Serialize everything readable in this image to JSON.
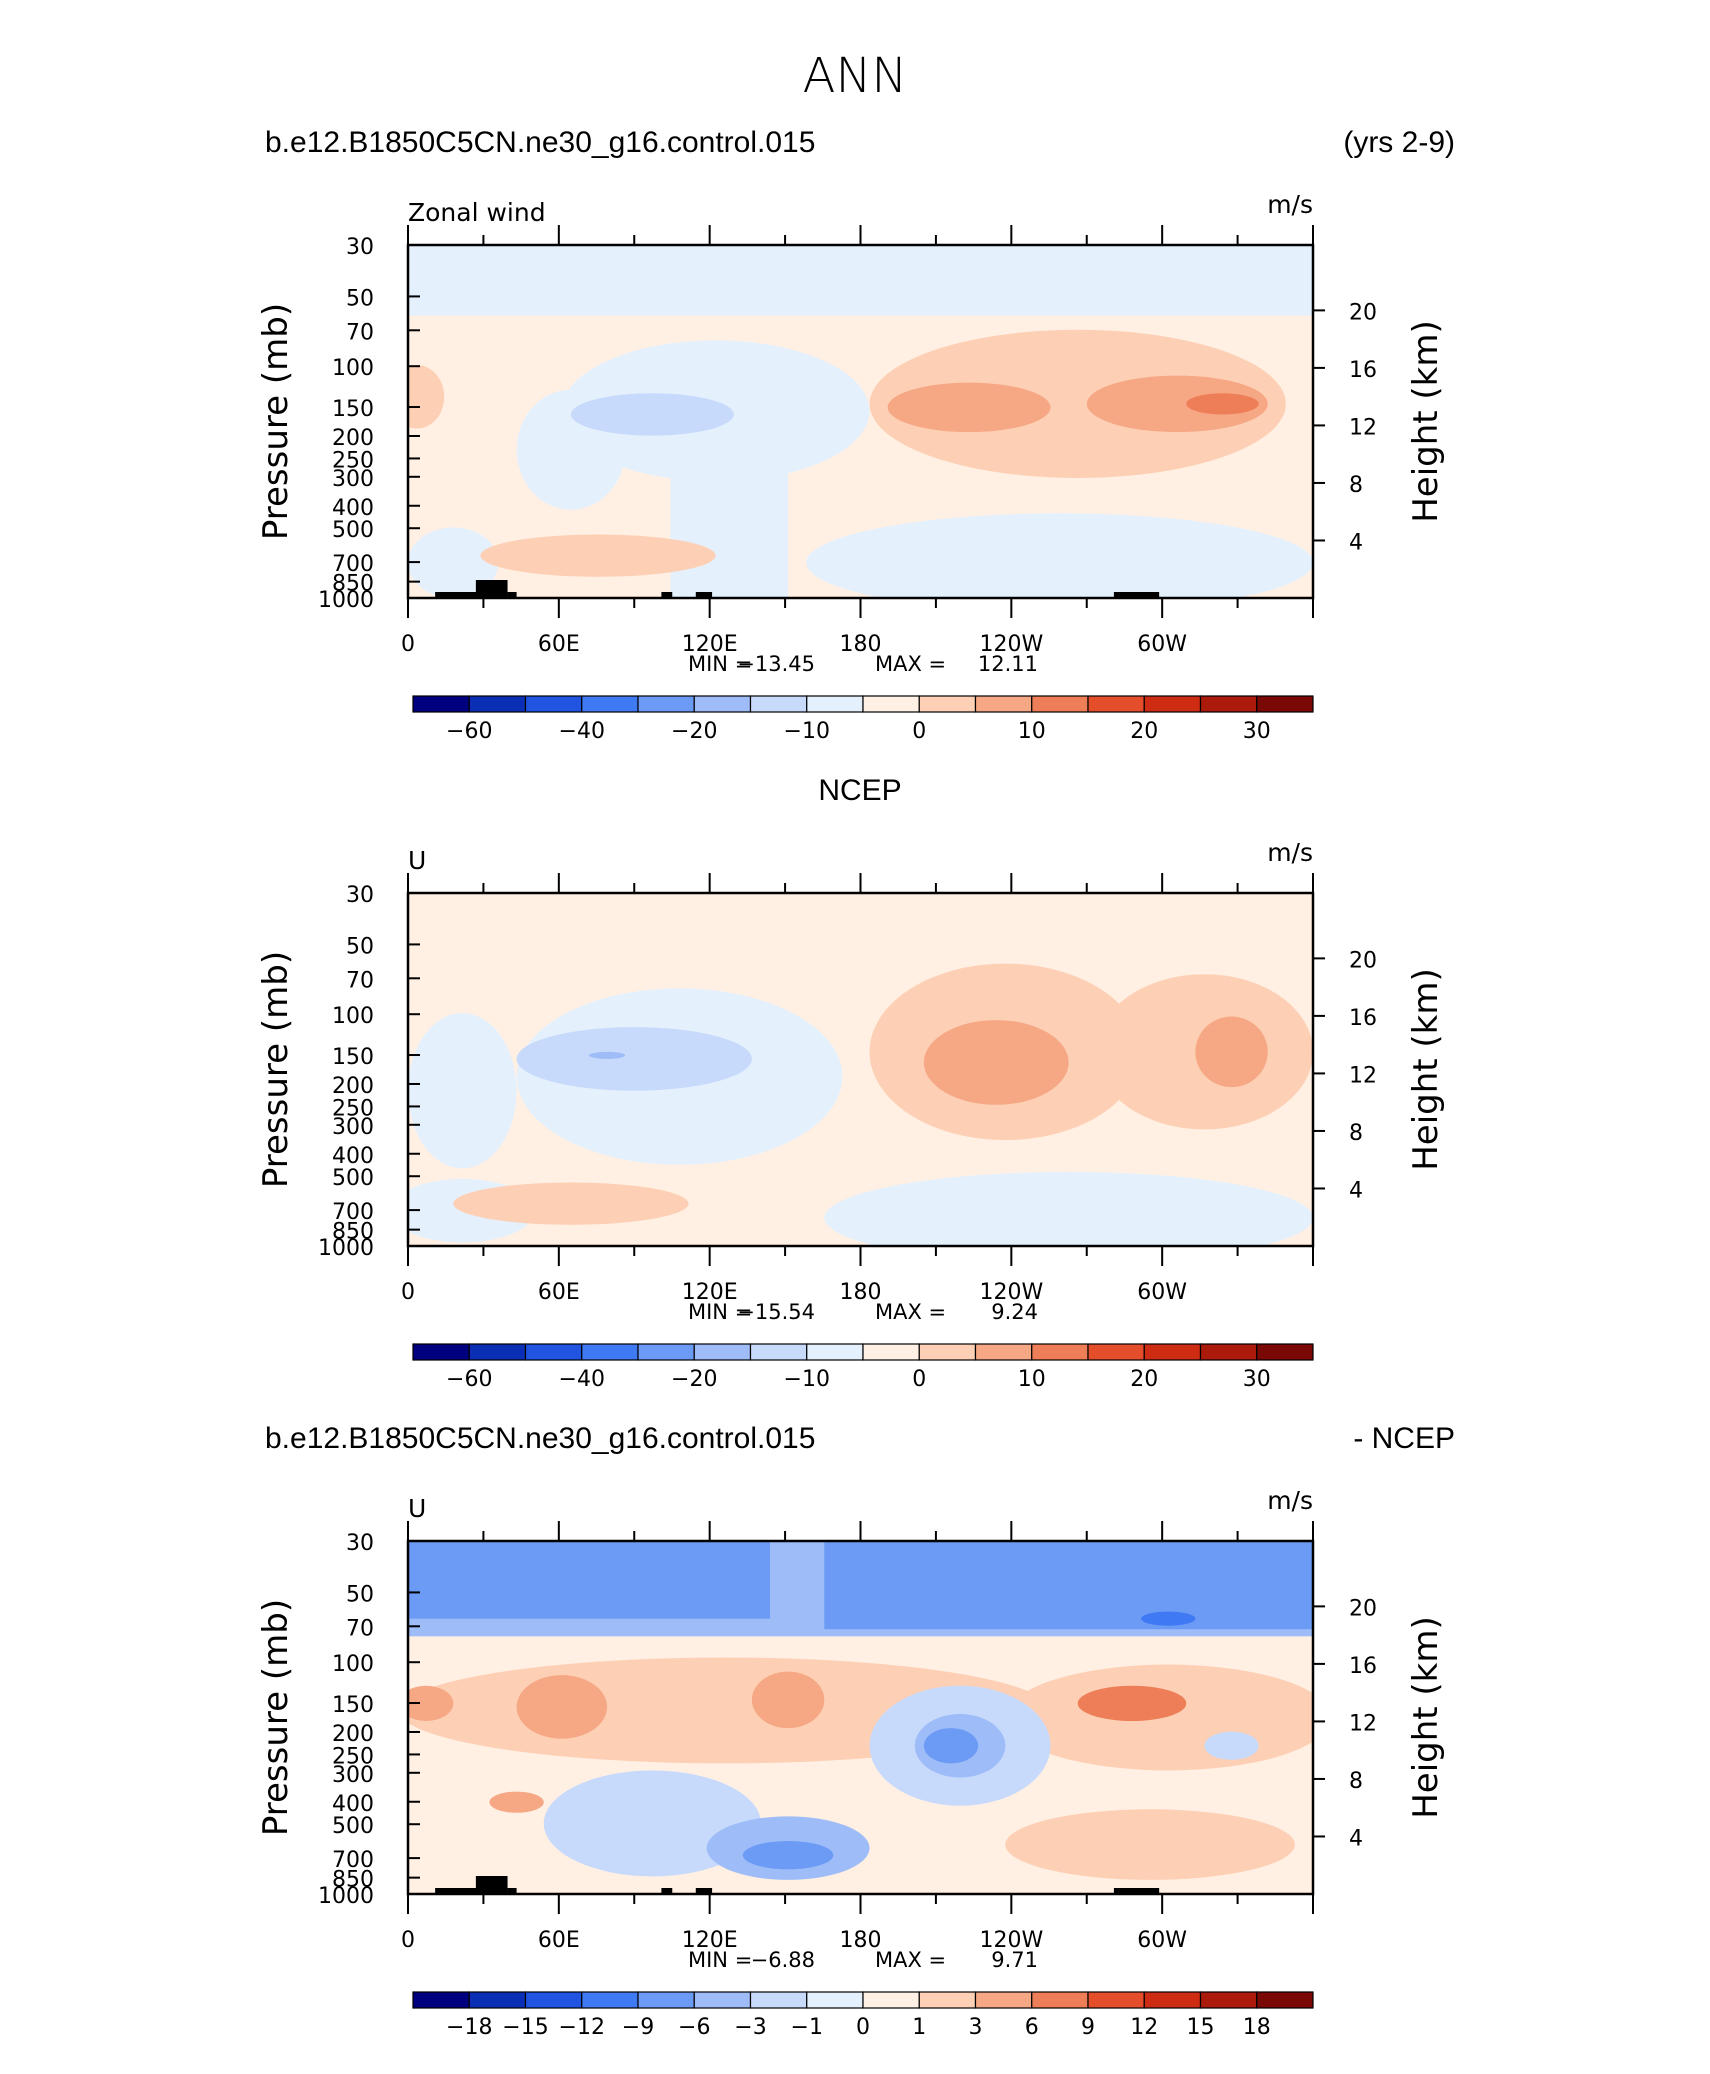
{
  "main_title": "ANN",
  "colors": {
    "ramp": [
      "#00007f",
      "#0a2eb4",
      "#1f55e0",
      "#3f79f3",
      "#6c9bf6",
      "#9dbcf8",
      "#c7dafb",
      "#e5f0fd",
      "#fff0e3",
      "#fdd0b6",
      "#f6a784",
      "#ee7e57",
      "#e54e2a",
      "#cf2c14",
      "#ab1a0b",
      "#7a0805"
    ]
  },
  "chart_data": [
    {
      "type": "contour",
      "case_title": "b.e12.B1850C5CN.ne30_g16.control.015",
      "right_title": "(yrs 2-9)",
      "center_title": "",
      "variable_label": "Zonal wind",
      "units": "m/s",
      "ylabel": "Pressure (mb)",
      "y2label": "Height (km)",
      "xlabel": "",
      "y_ticks": [
        "30",
        "50",
        "70",
        "100",
        "150",
        "200",
        "250",
        "300",
        "400",
        "500",
        "700",
        "850",
        "1000"
      ],
      "y2_ticks": [
        "20",
        "16",
        "12",
        "8",
        "4"
      ],
      "x_ticks": [
        "0",
        "60E",
        "120E",
        "180",
        "120W",
        "60W"
      ],
      "min_label": "MIN =",
      "min": "−13.45",
      "max_label": "MAX =",
      "max": "12.11",
      "colorbar_labels": [
        "−60",
        "−40",
        "−20",
        "−10",
        "0",
        "10",
        "20",
        "30"
      ]
    },
    {
      "type": "contour",
      "case_title": "",
      "right_title": "",
      "center_title": "NCEP",
      "variable_label": "U",
      "units": "m/s",
      "ylabel": "Pressure (mb)",
      "y2label": "Height (km)",
      "xlabel": "",
      "y_ticks": [
        "30",
        "50",
        "70",
        "100",
        "150",
        "200",
        "250",
        "300",
        "400",
        "500",
        "700",
        "850",
        "1000"
      ],
      "y2_ticks": [
        "20",
        "16",
        "12",
        "8",
        "4"
      ],
      "x_ticks": [
        "0",
        "60E",
        "120E",
        "180",
        "120W",
        "60W"
      ],
      "min_label": "MIN =",
      "min": "−15.54",
      "max_label": "MAX =",
      "max": "9.24",
      "colorbar_labels": [
        "−60",
        "−40",
        "−20",
        "−10",
        "0",
        "10",
        "20",
        "30"
      ]
    },
    {
      "type": "contour",
      "case_title": "b.e12.B1850C5CN.ne30_g16.control.015",
      "right_title": "- NCEP",
      "center_title": "",
      "variable_label": "U",
      "units": "m/s",
      "ylabel": "Pressure (mb)",
      "y2label": "Height (km)",
      "xlabel": "",
      "y_ticks": [
        "30",
        "50",
        "70",
        "100",
        "150",
        "200",
        "250",
        "300",
        "400",
        "500",
        "700",
        "850",
        "1000"
      ],
      "y2_ticks": [
        "20",
        "16",
        "12",
        "8",
        "4"
      ],
      "x_ticks": [
        "0",
        "60E",
        "120E",
        "180",
        "120W",
        "60W"
      ],
      "min_label": "MIN =",
      "min": "−6.88",
      "max_label": "MAX =",
      "max": "9.71",
      "colorbar_labels": [
        "−18",
        "−15",
        "−12",
        "−9",
        "−6",
        "−3",
        "−1",
        "0",
        "1",
        "3",
        "6",
        "9",
        "12",
        "15",
        "18"
      ]
    }
  ]
}
